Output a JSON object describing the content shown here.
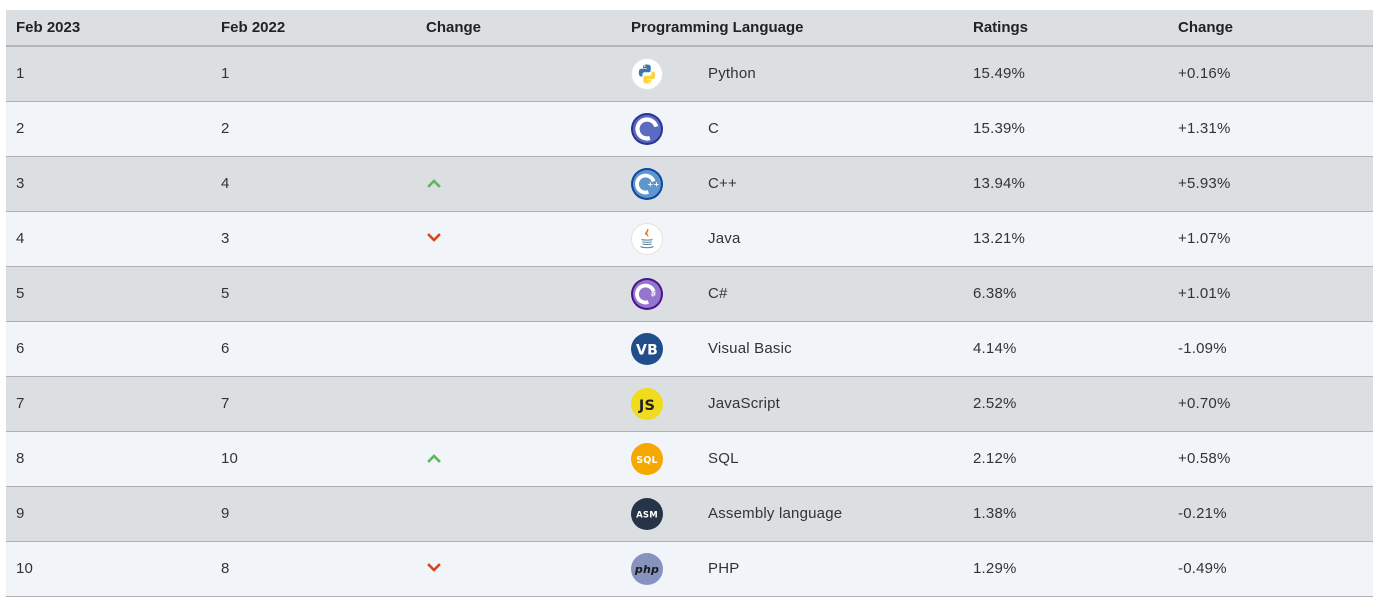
{
  "headers": [
    "Feb 2023",
    "Feb 2022",
    "Change",
    "Programming Language",
    "Ratings",
    "Change"
  ],
  "rows": [
    {
      "feb2023": "1",
      "feb2022": "1",
      "trend": "none",
      "language": "Python",
      "logo": "python-icon",
      "ratings": "15.49%",
      "change": "+0.16%"
    },
    {
      "feb2023": "2",
      "feb2022": "2",
      "trend": "none",
      "language": "C",
      "logo": "c-icon",
      "ratings": "15.39%",
      "change": "+1.31%"
    },
    {
      "feb2023": "3",
      "feb2022": "4",
      "trend": "up",
      "language": "C++",
      "logo": "cpp-icon",
      "ratings": "13.94%",
      "change": "+5.93%"
    },
    {
      "feb2023": "4",
      "feb2022": "3",
      "trend": "down",
      "language": "Java",
      "logo": "java-icon",
      "ratings": "13.21%",
      "change": "+1.07%"
    },
    {
      "feb2023": "5",
      "feb2022": "5",
      "trend": "none",
      "language": "C#",
      "logo": "csharp-icon",
      "ratings": "6.38%",
      "change": "+1.01%"
    },
    {
      "feb2023": "6",
      "feb2022": "6",
      "trend": "none",
      "language": "Visual Basic",
      "logo": "visual-basic-icon",
      "ratings": "4.14%",
      "change": "-1.09%"
    },
    {
      "feb2023": "7",
      "feb2022": "7",
      "trend": "none",
      "language": "JavaScript",
      "logo": "javascript-icon",
      "ratings": "2.52%",
      "change": "+0.70%"
    },
    {
      "feb2023": "8",
      "feb2022": "10",
      "trend": "up",
      "language": "SQL",
      "logo": "sql-icon",
      "ratings": "2.12%",
      "change": "+0.58%"
    },
    {
      "feb2023": "9",
      "feb2022": "9",
      "trend": "none",
      "language": "Assembly language",
      "logo": "assembly-icon",
      "ratings": "1.38%",
      "change": "-0.21%"
    },
    {
      "feb2023": "10",
      "feb2022": "8",
      "trend": "down",
      "language": "PHP",
      "logo": "php-icon",
      "ratings": "1.29%",
      "change": "-0.49%"
    }
  ],
  "logo_text": {
    "visual-basic-icon": "VB",
    "javascript-icon": "JS",
    "sql-icon": "SQL",
    "assembly-icon": "ASM",
    "php-icon": "php"
  },
  "colors": {
    "up_arrow": "#5cb85c",
    "down_arrow": "#d9441c",
    "row_odd": "#dcdfe2",
    "row_even": "#f1f5f9"
  }
}
